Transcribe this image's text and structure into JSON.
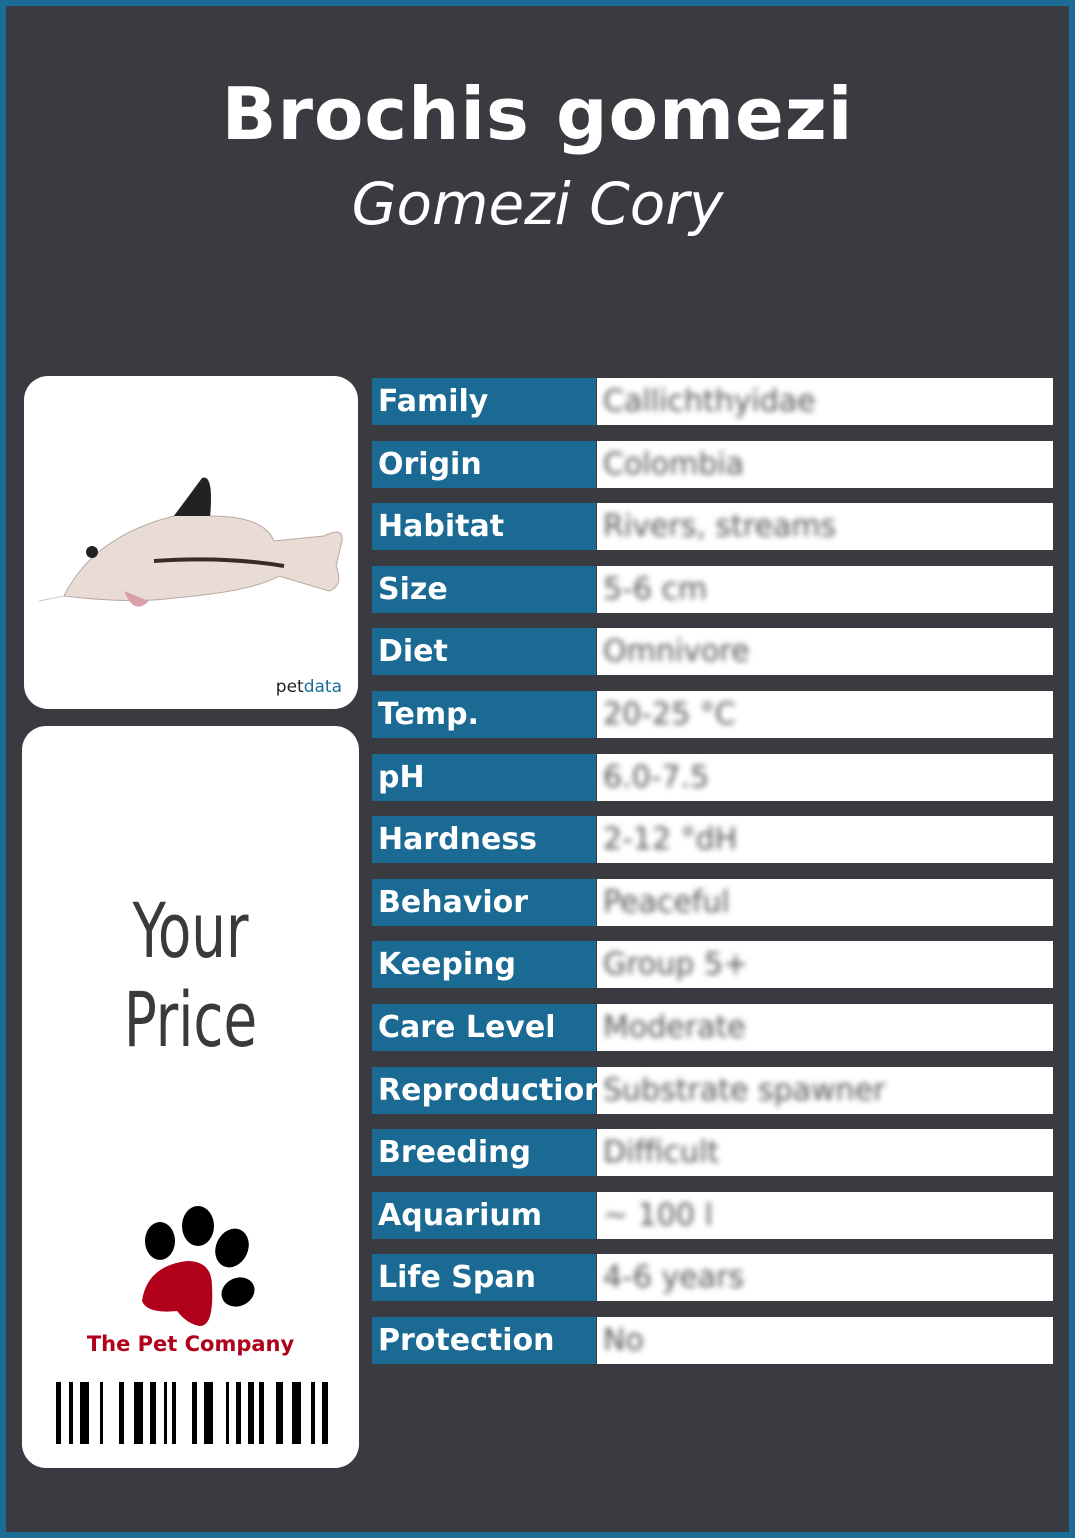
{
  "header": {
    "scientific_name": "Brochis gomezi",
    "common_name": "Gomezi Cory"
  },
  "photo": {
    "credit_a": "pet",
    "credit_b": "data"
  },
  "price": {
    "label": "Your Price"
  },
  "brand": {
    "name": "The Pet Company",
    "accent": "#b0001a"
  },
  "colors": {
    "label_bg": "#1b6a94",
    "background": "#3a3b40",
    "border": "#1b6d96"
  },
  "facts": [
    {
      "label": "Family",
      "value": "Callichthyidae"
    },
    {
      "label": "Origin",
      "value": "Colombia"
    },
    {
      "label": "Habitat",
      "value": "Rivers, streams"
    },
    {
      "label": "Size",
      "value": "5-6 cm"
    },
    {
      "label": "Diet",
      "value": "Omnivore"
    },
    {
      "label": "Temp.",
      "value": "20-25 °C"
    },
    {
      "label": "pH",
      "value": "6.0-7.5"
    },
    {
      "label": "Hardness",
      "value": "2-12 °dH"
    },
    {
      "label": "Behavior",
      "value": "Peaceful"
    },
    {
      "label": "Keeping",
      "value": "Group 5+"
    },
    {
      "label": "Care Level",
      "value": "Moderate"
    },
    {
      "label": "Reproduction",
      "value": "Substrate spawner"
    },
    {
      "label": "Breeding",
      "value": "Difficult"
    },
    {
      "label": "Aquarium",
      "value": "~ 100 l"
    },
    {
      "label": "Life Span",
      "value": "4-6 years"
    },
    {
      "label": "Protection",
      "value": "No"
    }
  ]
}
